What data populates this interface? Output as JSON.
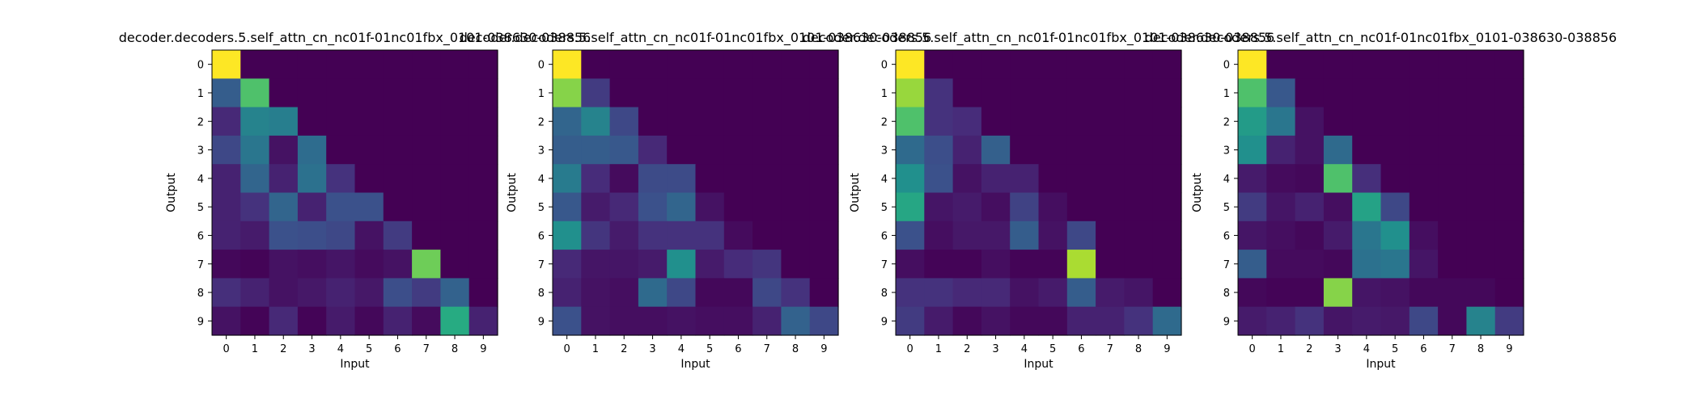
{
  "figure": {
    "background": "#ffffff",
    "colormap": "viridis",
    "dark_color": "#440154"
  },
  "chart_data": [
    {
      "type": "heatmap",
      "title": "decoder.decoders.5.self_attn_cn_nc01f-01nc01fbx_0101-038630-038856",
      "xlabel": "Input",
      "ylabel": "Output",
      "x_ticks": [
        "0",
        "1",
        "2",
        "3",
        "4",
        "5",
        "6",
        "7",
        "8",
        "9"
      ],
      "y_ticks": [
        "0",
        "1",
        "2",
        "3",
        "4",
        "5",
        "6",
        "7",
        "8",
        "9"
      ],
      "values": [
        [
          1.0,
          0,
          0,
          0,
          0,
          0,
          0,
          0,
          0,
          0
        ],
        [
          0.3,
          0.72,
          0,
          0,
          0,
          0,
          0,
          0,
          0,
          0
        ],
        [
          0.12,
          0.45,
          0.43,
          0,
          0,
          0,
          0,
          0,
          0,
          0
        ],
        [
          0.22,
          0.4,
          0.05,
          0.36,
          0,
          0,
          0,
          0,
          0,
          0
        ],
        [
          0.1,
          0.33,
          0.1,
          0.38,
          0.15,
          0,
          0,
          0,
          0,
          0
        ],
        [
          0.1,
          0.15,
          0.33,
          0.1,
          0.25,
          0.25,
          0,
          0,
          0,
          0
        ],
        [
          0.1,
          0.08,
          0.25,
          0.24,
          0.22,
          0.05,
          0.18,
          0,
          0,
          0
        ],
        [
          0.02,
          0.01,
          0.05,
          0.04,
          0.06,
          0.03,
          0.05,
          0.78,
          0,
          0
        ],
        [
          0.14,
          0.1,
          0.05,
          0.07,
          0.1,
          0.07,
          0.24,
          0.18,
          0.32,
          0
        ],
        [
          0.05,
          0.01,
          0.12,
          0.01,
          0.08,
          0.02,
          0.1,
          0.03,
          0.62,
          0.1
        ]
      ]
    },
    {
      "type": "heatmap",
      "title": "decoder.decoders.5.self_attn_cn_nc01f-01nc01fbx_0101-038630-038856",
      "xlabel": "Input",
      "ylabel": "Output",
      "x_ticks": [
        "0",
        "1",
        "2",
        "3",
        "4",
        "5",
        "6",
        "7",
        "8",
        "9"
      ],
      "y_ticks": [
        "0",
        "1",
        "2",
        "3",
        "4",
        "5",
        "6",
        "7",
        "8",
        "9"
      ],
      "values": [
        [
          1.0,
          0,
          0,
          0,
          0,
          0,
          0,
          0,
          0,
          0
        ],
        [
          0.82,
          0.18,
          0,
          0,
          0,
          0,
          0,
          0,
          0,
          0
        ],
        [
          0.33,
          0.45,
          0.22,
          0,
          0,
          0,
          0,
          0,
          0,
          0
        ],
        [
          0.3,
          0.3,
          0.28,
          0.12,
          0,
          0,
          0,
          0,
          0,
          0
        ],
        [
          0.42,
          0.13,
          0.03,
          0.23,
          0.23,
          0,
          0,
          0,
          0,
          0
        ],
        [
          0.28,
          0.08,
          0.12,
          0.25,
          0.33,
          0.05,
          0,
          0,
          0,
          0
        ],
        [
          0.5,
          0.16,
          0.08,
          0.15,
          0.15,
          0.15,
          0.03,
          0,
          0,
          0
        ],
        [
          0.12,
          0.06,
          0.06,
          0.08,
          0.5,
          0.08,
          0.13,
          0.16,
          0,
          0
        ],
        [
          0.1,
          0.05,
          0.04,
          0.35,
          0.22,
          0.02,
          0.02,
          0.22,
          0.15,
          0
        ],
        [
          0.25,
          0.05,
          0.04,
          0.04,
          0.05,
          0.04,
          0.04,
          0.1,
          0.32,
          0.22
        ]
      ]
    },
    {
      "type": "heatmap",
      "title": "decoder.decoders.5.self_attn_cn_nc01f-01nc01fbx_0101-038630-038856",
      "xlabel": "Input",
      "ylabel": "Output",
      "x_ticks": [
        "0",
        "1",
        "2",
        "3",
        "4",
        "5",
        "6",
        "7",
        "8",
        "9"
      ],
      "y_ticks": [
        "0",
        "1",
        "2",
        "3",
        "4",
        "5",
        "6",
        "7",
        "8",
        "9"
      ],
      "values": [
        [
          1.0,
          0,
          0,
          0,
          0,
          0,
          0,
          0,
          0,
          0
        ],
        [
          0.85,
          0.15,
          0,
          0,
          0,
          0,
          0,
          0,
          0,
          0
        ],
        [
          0.72,
          0.15,
          0.13,
          0,
          0,
          0,
          0,
          0,
          0,
          0
        ],
        [
          0.35,
          0.24,
          0.1,
          0.31,
          0,
          0,
          0,
          0,
          0,
          0
        ],
        [
          0.5,
          0.25,
          0.05,
          0.1,
          0.1,
          0,
          0,
          0,
          0,
          0
        ],
        [
          0.6,
          0.06,
          0.08,
          0.04,
          0.2,
          0.04,
          0,
          0,
          0,
          0
        ],
        [
          0.25,
          0.04,
          0.07,
          0.07,
          0.3,
          0.05,
          0.22,
          0,
          0,
          0
        ],
        [
          0.04,
          0.01,
          0.01,
          0.04,
          0.01,
          0.01,
          0.88,
          0,
          0,
          0
        ],
        [
          0.15,
          0.15,
          0.12,
          0.12,
          0.05,
          0.08,
          0.3,
          0.08,
          0.06,
          0
        ],
        [
          0.18,
          0.08,
          0.02,
          0.05,
          0.02,
          0.02,
          0.1,
          0.1,
          0.15,
          0.35
        ]
      ]
    },
    {
      "type": "heatmap",
      "title": "decoder.decoders.5.self_attn_cn_nc01f-01nc01fbx_0101-038630-038856",
      "xlabel": "Input",
      "ylabel": "Output",
      "x_ticks": [
        "0",
        "1",
        "2",
        "3",
        "4",
        "5",
        "6",
        "7",
        "8",
        "9"
      ],
      "y_ticks": [
        "0",
        "1",
        "2",
        "3",
        "4",
        "5",
        "6",
        "7",
        "8",
        "9"
      ],
      "values": [
        [
          1.0,
          0,
          0,
          0,
          0,
          0,
          0,
          0,
          0,
          0
        ],
        [
          0.72,
          0.28,
          0,
          0,
          0,
          0,
          0,
          0,
          0,
          0
        ],
        [
          0.55,
          0.4,
          0.05,
          0,
          0,
          0,
          0,
          0,
          0,
          0
        ],
        [
          0.5,
          0.1,
          0.05,
          0.35,
          0,
          0,
          0,
          0,
          0,
          0
        ],
        [
          0.08,
          0.03,
          0.02,
          0.72,
          0.14,
          0,
          0,
          0,
          0,
          0
        ],
        [
          0.18,
          0.06,
          0.1,
          0.04,
          0.58,
          0.22,
          0,
          0,
          0,
          0
        ],
        [
          0.06,
          0.04,
          0.02,
          0.08,
          0.4,
          0.5,
          0.04,
          0,
          0,
          0
        ],
        [
          0.3,
          0.03,
          0.03,
          0.02,
          0.38,
          0.4,
          0.06,
          0,
          0,
          0
        ],
        [
          0.02,
          0.01,
          0.01,
          0.82,
          0.06,
          0.05,
          0.02,
          0.02,
          0.02,
          0
        ],
        [
          0.08,
          0.1,
          0.15,
          0.06,
          0.08,
          0.07,
          0.22,
          0.02,
          0.45,
          0.18
        ]
      ]
    }
  ]
}
